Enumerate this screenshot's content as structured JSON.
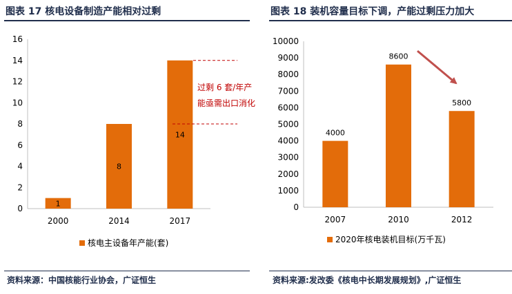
{
  "left": {
    "heading": "图表 17   核电设备制造产能相对过剩",
    "source": "资料来源：中国核能行业协会，广证恒生",
    "overcap_annotation": [
      "过剩 6 套/年产",
      "能亟需出口消化"
    ]
  },
  "right": {
    "heading": "图表 18   装机容量目标下调，产能过剩压力加大",
    "source": "资料来源:发改委《核电中长期发展规划》,广证恒生"
  },
  "colors": {
    "bar": "#e36c0a",
    "axis": "#bfbfbf",
    "annotation": "#c00000",
    "arrow": "#c0504d",
    "title": "#1f2d4b"
  },
  "chart_data": [
    {
      "type": "bar",
      "categories": [
        "2000",
        "2014",
        "2017"
      ],
      "series": [
        {
          "name": "核电主设备年产能(套)",
          "values": [
            1,
            8,
            14
          ]
        }
      ],
      "ylim": [
        0,
        16
      ],
      "yticks": [
        0,
        2,
        4,
        6,
        8,
        10,
        12,
        14,
        16
      ],
      "data_labels": [
        "1",
        "8",
        "14"
      ],
      "grid": false,
      "legend": "bottom"
    },
    {
      "type": "bar",
      "categories": [
        "2007",
        "2010",
        "2012"
      ],
      "series": [
        {
          "name": "2020年核电装机目标(万千瓦)",
          "values": [
            4000,
            8600,
            5800
          ]
        }
      ],
      "ylim": [
        0,
        10000
      ],
      "yticks": [
        0,
        1000,
        2000,
        3000,
        4000,
        5000,
        6000,
        7000,
        8000,
        9000,
        10000
      ],
      "data_labels": [
        "4000",
        "8600",
        "5800"
      ],
      "grid": false,
      "legend": "bottom"
    }
  ]
}
